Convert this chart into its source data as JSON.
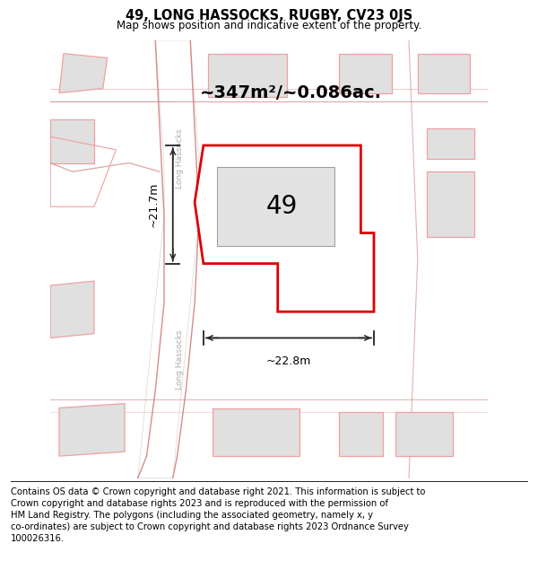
{
  "title": "49, LONG HASSOCKS, RUGBY, CV23 0JS",
  "subtitle": "Map shows position and indicative extent of the property.",
  "footer": "Contains OS data © Crown copyright and database right 2021. This information is subject to\nCrown copyright and database rights 2023 and is reproduced with the permission of\nHM Land Registry. The polygons (including the associated geometry, namely x, y\nco-ordinates) are subject to Crown copyright and database rights 2023 Ordnance Survey\n100026316.",
  "area_label": "~347m²/~0.086ac.",
  "width_label": "~22.8m",
  "height_label": "~21.7m",
  "street_label_1": "Long Hassocks",
  "street_label_2": "Long Hassocks",
  "number_label": "49",
  "bg_color": "#f0f0f0",
  "plot_color": "#dd0000",
  "building_fill": "#e0e0e0",
  "building_edge": "#aaaaaa",
  "neighbor_edge": "#f0a0a0",
  "road_line_color": "#d08080",
  "dim_color": "#222222",
  "street_color": "#aaaaaa",
  "title_fontsize": 10.5,
  "subtitle_fontsize": 8.5,
  "footer_fontsize": 7.2,
  "area_fontsize": 14,
  "number_fontsize": 20,
  "dim_fontsize": 9
}
